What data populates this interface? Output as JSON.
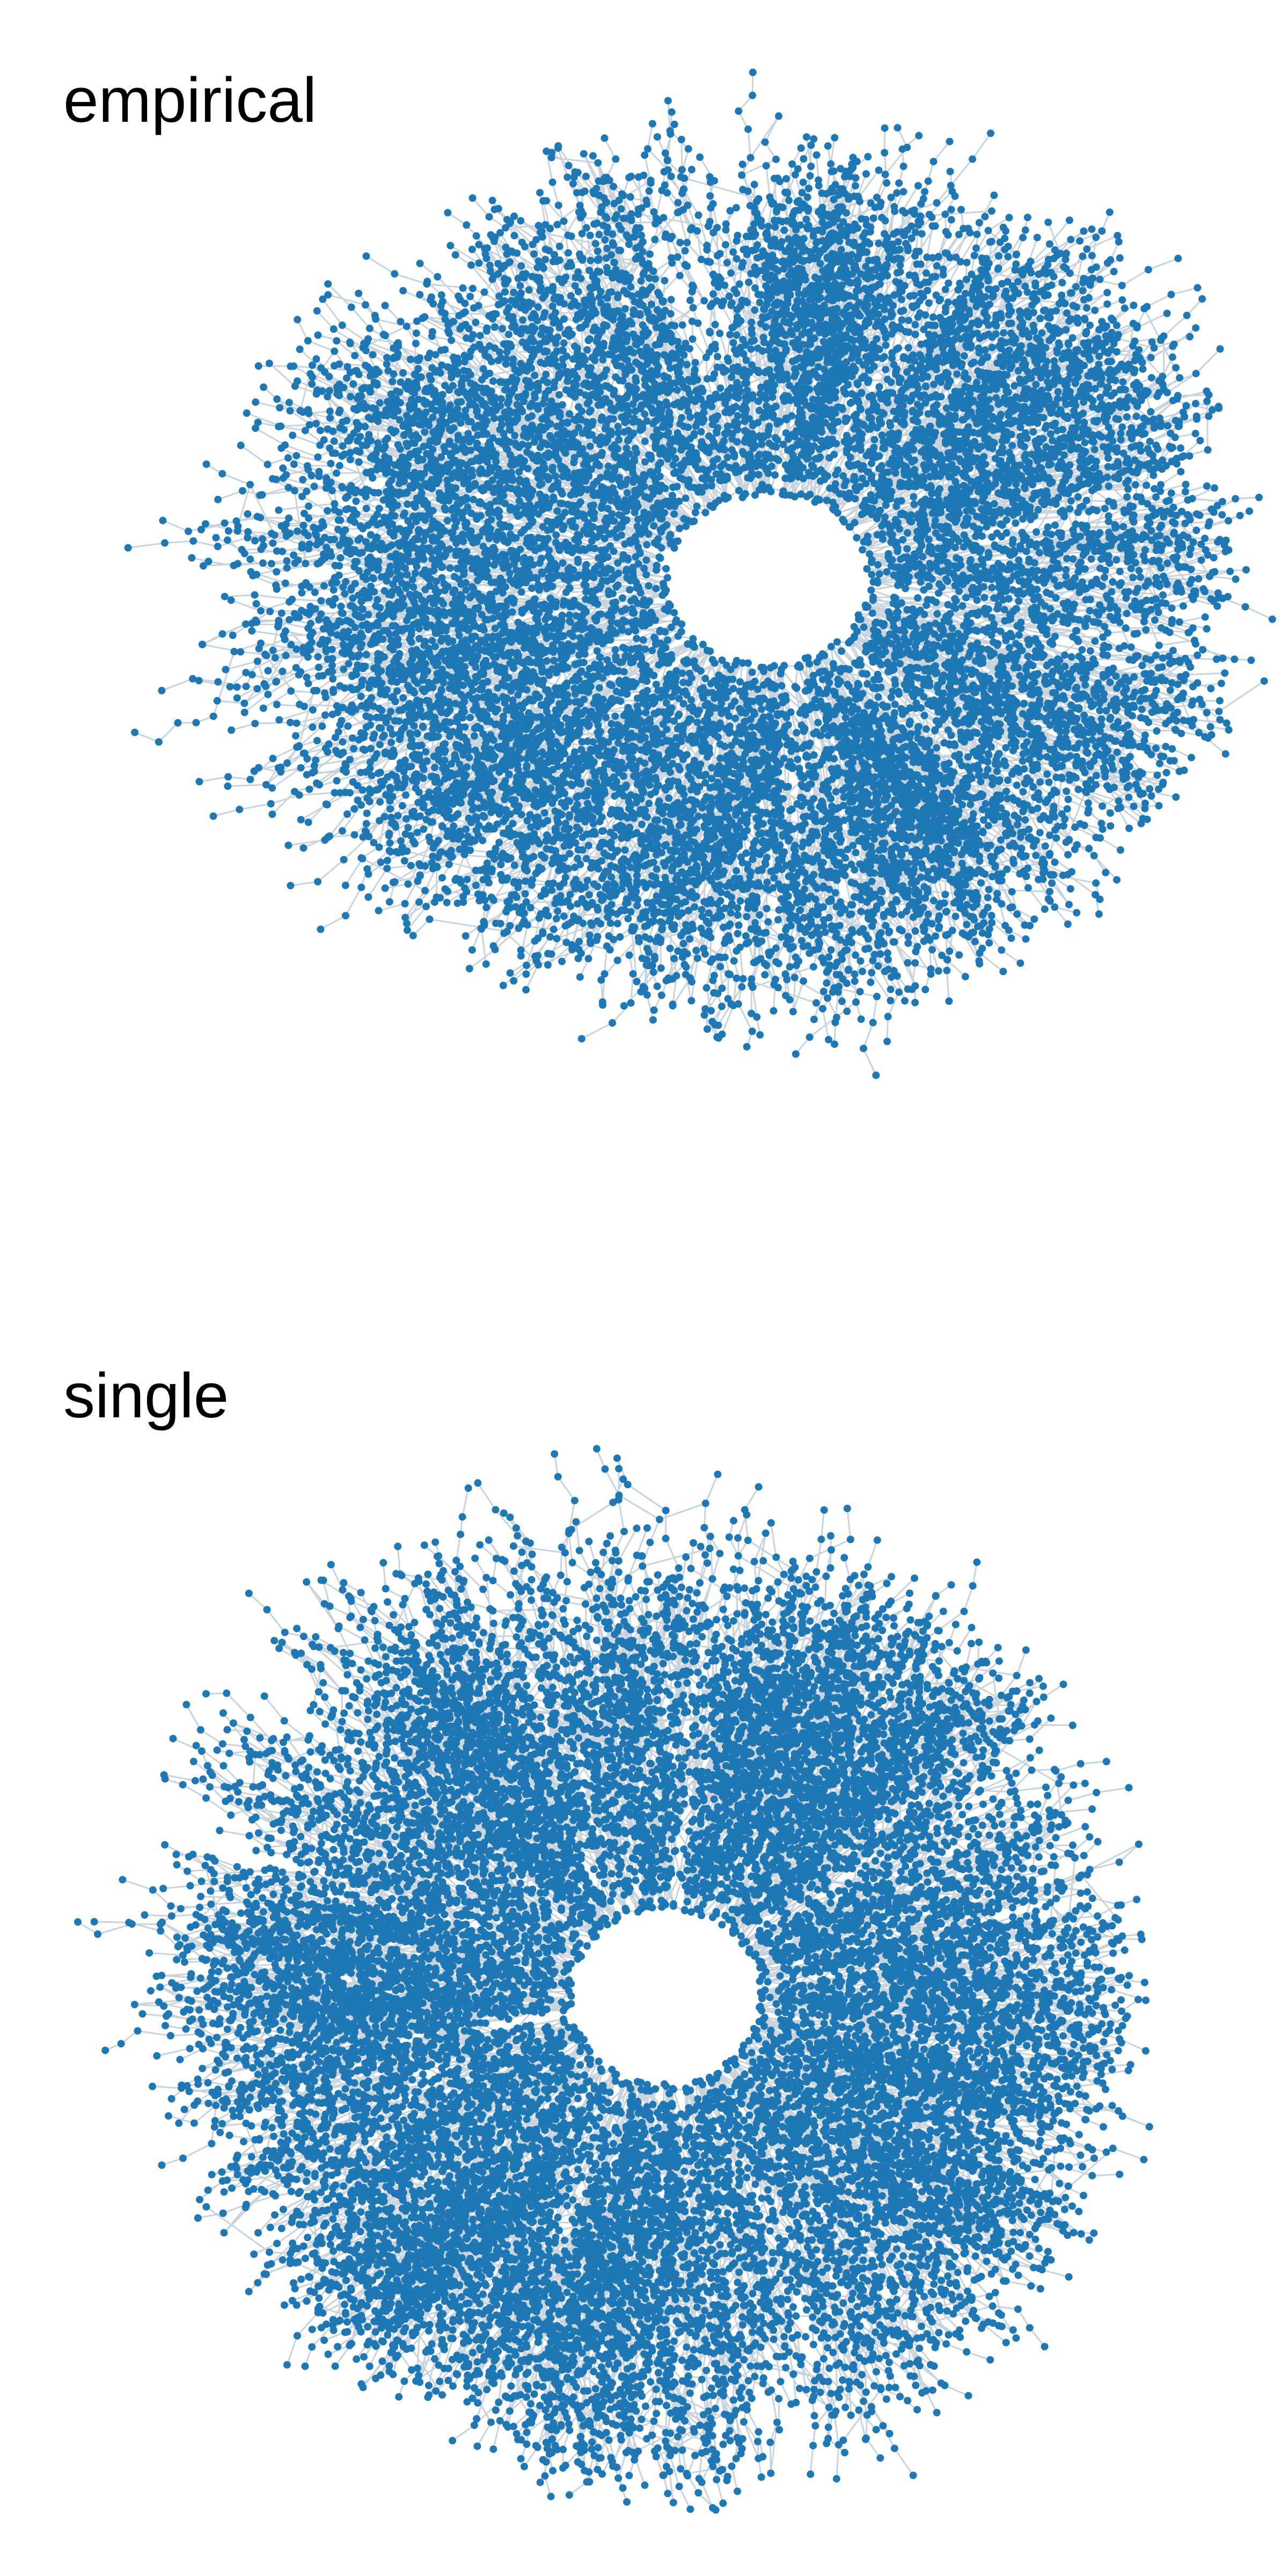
{
  "panels": {
    "empirical": {
      "title": "empirical"
    },
    "single": {
      "title": "single"
    }
  },
  "colors": {
    "node": "#1f77b4",
    "edge": "#c8d3dc"
  },
  "graph": {
    "style": "radial tree-like network with central hole",
    "node_count_approx": 2500
  }
}
